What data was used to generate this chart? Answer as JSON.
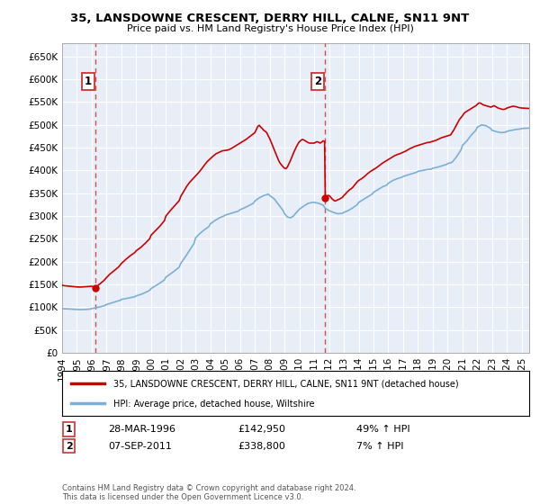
{
  "title": "35, LANSDOWNE CRESCENT, DERRY HILL, CALNE, SN11 9NT",
  "subtitle": "Price paid vs. HM Land Registry's House Price Index (HPI)",
  "xlim_start": 1994.0,
  "xlim_end": 2025.5,
  "ylim": [
    0,
    680000
  ],
  "yticks": [
    0,
    50000,
    100000,
    150000,
    200000,
    250000,
    300000,
    350000,
    400000,
    450000,
    500000,
    550000,
    600000,
    650000
  ],
  "sale1_x": 1996.24,
  "sale1_y": 142950,
  "sale2_x": 2011.75,
  "sale2_y": 338800,
  "sale1_label": "1",
  "sale2_label": "2",
  "line_color_red": "#cc0000",
  "line_color_blue": "#7ab0d4",
  "dashed_line_color": "#cc3333",
  "bg_blue": "#e8eef8",
  "bg_hatch": "#d8dce8",
  "legend_label_red": "35, LANSDOWNE CRESCENT, DERRY HILL, CALNE, SN11 9NT (detached house)",
  "legend_label_blue": "HPI: Average price, detached house, Wiltshire",
  "table_row1": [
    "1",
    "28-MAR-1996",
    "£142,950",
    "49% ↑ HPI"
  ],
  "table_row2": [
    "2",
    "07-SEP-2011",
    "£338,800",
    "7% ↑ HPI"
  ],
  "footer": "Contains HM Land Registry data © Crown copyright and database right 2024.\nThis data is licensed under the Open Government Licence v3.0.",
  "xtick_years": [
    1994,
    1995,
    1996,
    1997,
    1998,
    1999,
    2000,
    2001,
    2002,
    2003,
    2004,
    2005,
    2006,
    2007,
    2008,
    2009,
    2010,
    2011,
    2012,
    2013,
    2014,
    2015,
    2016,
    2017,
    2018,
    2019,
    2020,
    2021,
    2022,
    2023,
    2024,
    2025
  ],
  "blue_pts": [
    [
      1994.0,
      97000
    ],
    [
      1994.2,
      96500
    ],
    [
      1994.5,
      96000
    ],
    [
      1994.8,
      95500
    ],
    [
      1995.0,
      95000
    ],
    [
      1995.3,
      94800
    ],
    [
      1995.6,
      95200
    ],
    [
      1995.9,
      96000
    ],
    [
      1996.0,
      97000
    ],
    [
      1996.3,
      99000
    ],
    [
      1996.6,
      101000
    ],
    [
      1996.9,
      104000
    ],
    [
      1997.0,
      106000
    ],
    [
      1997.3,
      109000
    ],
    [
      1997.6,
      112000
    ],
    [
      1997.9,
      115000
    ],
    [
      1998.0,
      117000
    ],
    [
      1998.3,
      119000
    ],
    [
      1998.6,
      121000
    ],
    [
      1998.9,
      123000
    ],
    [
      1999.0,
      125000
    ],
    [
      1999.3,
      128000
    ],
    [
      1999.6,
      132000
    ],
    [
      1999.9,
      137000
    ],
    [
      2000.0,
      141000
    ],
    [
      2000.3,
      147000
    ],
    [
      2000.6,
      153000
    ],
    [
      2000.9,
      160000
    ],
    [
      2001.0,
      166000
    ],
    [
      2001.3,
      173000
    ],
    [
      2001.6,
      180000
    ],
    [
      2001.9,
      188000
    ],
    [
      2002.0,
      196000
    ],
    [
      2002.3,
      210000
    ],
    [
      2002.6,
      225000
    ],
    [
      2002.9,
      240000
    ],
    [
      2003.0,
      252000
    ],
    [
      2003.3,
      262000
    ],
    [
      2003.6,
      270000
    ],
    [
      2003.9,
      277000
    ],
    [
      2004.0,
      283000
    ],
    [
      2004.3,
      290000
    ],
    [
      2004.6,
      296000
    ],
    [
      2004.9,
      300000
    ],
    [
      2005.0,
      302000
    ],
    [
      2005.3,
      305000
    ],
    [
      2005.6,
      308000
    ],
    [
      2005.9,
      311000
    ],
    [
      2006.0,
      314000
    ],
    [
      2006.3,
      318000
    ],
    [
      2006.6,
      323000
    ],
    [
      2006.9,
      328000
    ],
    [
      2007.0,
      333000
    ],
    [
      2007.3,
      340000
    ],
    [
      2007.6,
      345000
    ],
    [
      2007.9,
      348000
    ],
    [
      2008.0,
      345000
    ],
    [
      2008.3,
      338000
    ],
    [
      2008.6,
      325000
    ],
    [
      2008.9,
      312000
    ],
    [
      2009.0,
      305000
    ],
    [
      2009.2,
      298000
    ],
    [
      2009.4,
      296000
    ],
    [
      2009.6,
      300000
    ],
    [
      2009.8,
      308000
    ],
    [
      2010.0,
      315000
    ],
    [
      2010.3,
      322000
    ],
    [
      2010.6,
      328000
    ],
    [
      2010.9,
      330000
    ],
    [
      2011.0,
      330000
    ],
    [
      2011.3,
      328000
    ],
    [
      2011.6,
      324000
    ],
    [
      2011.75,
      317000
    ],
    [
      2012.0,
      312000
    ],
    [
      2012.3,
      308000
    ],
    [
      2012.6,
      305000
    ],
    [
      2012.9,
      306000
    ],
    [
      2013.0,
      308000
    ],
    [
      2013.3,
      312000
    ],
    [
      2013.6,
      318000
    ],
    [
      2013.9,
      325000
    ],
    [
      2014.0,
      330000
    ],
    [
      2014.3,
      336000
    ],
    [
      2014.6,
      342000
    ],
    [
      2014.9,
      348000
    ],
    [
      2015.0,
      352000
    ],
    [
      2015.3,
      358000
    ],
    [
      2015.6,
      364000
    ],
    [
      2015.9,
      368000
    ],
    [
      2016.0,
      372000
    ],
    [
      2016.3,
      378000
    ],
    [
      2016.6,
      382000
    ],
    [
      2016.9,
      385000
    ],
    [
      2017.0,
      387000
    ],
    [
      2017.3,
      390000
    ],
    [
      2017.6,
      393000
    ],
    [
      2017.9,
      396000
    ],
    [
      2018.0,
      398000
    ],
    [
      2018.3,
      400000
    ],
    [
      2018.6,
      402000
    ],
    [
      2018.9,
      403000
    ],
    [
      2019.0,
      405000
    ],
    [
      2019.3,
      407000
    ],
    [
      2019.6,
      410000
    ],
    [
      2019.9,
      413000
    ],
    [
      2020.0,
      415000
    ],
    [
      2020.3,
      418000
    ],
    [
      2020.6,
      430000
    ],
    [
      2020.9,
      445000
    ],
    [
      2021.0,
      455000
    ],
    [
      2021.3,
      465000
    ],
    [
      2021.6,
      478000
    ],
    [
      2021.9,
      488000
    ],
    [
      2022.0,
      495000
    ],
    [
      2022.3,
      500000
    ],
    [
      2022.6,
      498000
    ],
    [
      2022.9,
      492000
    ],
    [
      2023.0,
      488000
    ],
    [
      2023.3,
      485000
    ],
    [
      2023.6,
      483000
    ],
    [
      2023.9,
      484000
    ],
    [
      2024.0,
      486000
    ],
    [
      2024.3,
      488000
    ],
    [
      2024.6,
      490000
    ],
    [
      2024.9,
      491000
    ],
    [
      2025.0,
      492000
    ],
    [
      2025.5,
      493000
    ]
  ],
  "red_pts": [
    [
      1994.0,
      148000
    ],
    [
      1994.2,
      147000
    ],
    [
      1994.5,
      146000
    ],
    [
      1994.8,
      145000
    ],
    [
      1995.0,
      144500
    ],
    [
      1995.2,
      144200
    ],
    [
      1995.4,
      144500
    ],
    [
      1995.6,
      145000
    ],
    [
      1995.8,
      145500
    ],
    [
      1996.0,
      146000
    ],
    [
      1996.24,
      142950
    ],
    [
      1996.5,
      150000
    ],
    [
      1996.8,
      158000
    ],
    [
      1997.0,
      165000
    ],
    [
      1997.2,
      172000
    ],
    [
      1997.5,
      180000
    ],
    [
      1997.8,
      188000
    ],
    [
      1998.0,
      196000
    ],
    [
      1998.3,
      205000
    ],
    [
      1998.6,
      213000
    ],
    [
      1998.9,
      220000
    ],
    [
      1999.0,
      224000
    ],
    [
      1999.3,
      231000
    ],
    [
      1999.6,
      240000
    ],
    [
      1999.9,
      250000
    ],
    [
      2000.0,
      258000
    ],
    [
      2000.3,
      268000
    ],
    [
      2000.6,
      278000
    ],
    [
      2000.9,
      290000
    ],
    [
      2001.0,
      300000
    ],
    [
      2001.3,
      312000
    ],
    [
      2001.6,
      323000
    ],
    [
      2001.9,
      334000
    ],
    [
      2002.0,
      343000
    ],
    [
      2002.2,
      354000
    ],
    [
      2002.4,
      365000
    ],
    [
      2002.6,
      374000
    ],
    [
      2002.8,
      381000
    ],
    [
      2003.0,
      388000
    ],
    [
      2003.2,
      395000
    ],
    [
      2003.4,
      403000
    ],
    [
      2003.6,
      412000
    ],
    [
      2003.8,
      420000
    ],
    [
      2004.0,
      426000
    ],
    [
      2004.2,
      432000
    ],
    [
      2004.4,
      437000
    ],
    [
      2004.6,
      440000
    ],
    [
      2004.8,
      443000
    ],
    [
      2005.0,
      444000
    ],
    [
      2005.2,
      445000
    ],
    [
      2005.4,
      448000
    ],
    [
      2005.6,
      452000
    ],
    [
      2005.8,
      456000
    ],
    [
      2006.0,
      460000
    ],
    [
      2006.2,
      464000
    ],
    [
      2006.4,
      468000
    ],
    [
      2006.6,
      473000
    ],
    [
      2006.8,
      478000
    ],
    [
      2007.0,
      483000
    ],
    [
      2007.1,
      490000
    ],
    [
      2007.2,
      497000
    ],
    [
      2007.3,
      499000
    ],
    [
      2007.4,
      495000
    ],
    [
      2007.5,
      492000
    ],
    [
      2007.6,
      488000
    ],
    [
      2007.7,
      486000
    ],
    [
      2007.8,
      483000
    ],
    [
      2007.9,
      476000
    ],
    [
      2008.0,
      470000
    ],
    [
      2008.1,
      462000
    ],
    [
      2008.2,
      454000
    ],
    [
      2008.3,
      446000
    ],
    [
      2008.4,
      438000
    ],
    [
      2008.5,
      430000
    ],
    [
      2008.6,
      422000
    ],
    [
      2008.7,
      416000
    ],
    [
      2008.8,
      412000
    ],
    [
      2008.9,
      408000
    ],
    [
      2009.0,
      405000
    ],
    [
      2009.1,
      404000
    ],
    [
      2009.2,
      408000
    ],
    [
      2009.3,
      415000
    ],
    [
      2009.4,
      422000
    ],
    [
      2009.5,
      430000
    ],
    [
      2009.6,
      438000
    ],
    [
      2009.7,
      445000
    ],
    [
      2009.8,
      452000
    ],
    [
      2009.9,
      458000
    ],
    [
      2010.0,
      463000
    ],
    [
      2010.1,
      466000
    ],
    [
      2010.2,
      468000
    ],
    [
      2010.3,
      467000
    ],
    [
      2010.4,
      465000
    ],
    [
      2010.5,
      463000
    ],
    [
      2010.6,
      461000
    ],
    [
      2010.7,
      460000
    ],
    [
      2010.8,
      460000
    ],
    [
      2010.9,
      460000
    ],
    [
      2011.0,
      460000
    ],
    [
      2011.1,
      462000
    ],
    [
      2011.2,
      463000
    ],
    [
      2011.3,
      462000
    ],
    [
      2011.4,
      460000
    ],
    [
      2011.5,
      462000
    ],
    [
      2011.6,
      465000
    ],
    [
      2011.7,
      464000
    ],
    [
      2011.75,
      338800
    ],
    [
      2011.8,
      342000
    ],
    [
      2011.9,
      345000
    ],
    [
      2012.0,
      345000
    ],
    [
      2012.1,
      342000
    ],
    [
      2012.2,
      338000
    ],
    [
      2012.3,
      335000
    ],
    [
      2012.4,
      333000
    ],
    [
      2012.5,
      334000
    ],
    [
      2012.6,
      336000
    ],
    [
      2012.7,
      337000
    ],
    [
      2012.8,
      339000
    ],
    [
      2012.9,
      341000
    ],
    [
      2013.0,
      345000
    ],
    [
      2013.1,
      348000
    ],
    [
      2013.2,
      352000
    ],
    [
      2013.3,
      355000
    ],
    [
      2013.4,
      358000
    ],
    [
      2013.5,
      360000
    ],
    [
      2013.6,
      363000
    ],
    [
      2013.7,
      367000
    ],
    [
      2013.8,
      371000
    ],
    [
      2013.9,
      375000
    ],
    [
      2014.0,
      378000
    ],
    [
      2014.2,
      382000
    ],
    [
      2014.4,
      387000
    ],
    [
      2014.6,
      393000
    ],
    [
      2014.8,
      398000
    ],
    [
      2015.0,
      402000
    ],
    [
      2015.2,
      406000
    ],
    [
      2015.4,
      411000
    ],
    [
      2015.6,
      416000
    ],
    [
      2015.8,
      420000
    ],
    [
      2016.0,
      424000
    ],
    [
      2016.2,
      428000
    ],
    [
      2016.4,
      432000
    ],
    [
      2016.6,
      435000
    ],
    [
      2016.8,
      437000
    ],
    [
      2017.0,
      440000
    ],
    [
      2017.2,
      443000
    ],
    [
      2017.4,
      447000
    ],
    [
      2017.6,
      450000
    ],
    [
      2017.8,
      453000
    ],
    [
      2018.0,
      455000
    ],
    [
      2018.2,
      457000
    ],
    [
      2018.4,
      459000
    ],
    [
      2018.6,
      461000
    ],
    [
      2018.8,
      462000
    ],
    [
      2019.0,
      464000
    ],
    [
      2019.2,
      466000
    ],
    [
      2019.4,
      469000
    ],
    [
      2019.6,
      472000
    ],
    [
      2019.8,
      474000
    ],
    [
      2020.0,
      476000
    ],
    [
      2020.2,
      478000
    ],
    [
      2020.4,
      488000
    ],
    [
      2020.6,
      500000
    ],
    [
      2020.8,
      512000
    ],
    [
      2021.0,
      520000
    ],
    [
      2021.1,
      525000
    ],
    [
      2021.2,
      528000
    ],
    [
      2021.3,
      530000
    ],
    [
      2021.4,
      532000
    ],
    [
      2021.5,
      534000
    ],
    [
      2021.6,
      536000
    ],
    [
      2021.7,
      538000
    ],
    [
      2021.8,
      540000
    ],
    [
      2021.9,
      542000
    ],
    [
      2022.0,
      545000
    ],
    [
      2022.1,
      548000
    ],
    [
      2022.2,
      548000
    ],
    [
      2022.3,
      546000
    ],
    [
      2022.4,
      544000
    ],
    [
      2022.5,
      543000
    ],
    [
      2022.6,
      542000
    ],
    [
      2022.7,
      541000
    ],
    [
      2022.8,
      540000
    ],
    [
      2022.9,
      539000
    ],
    [
      2023.0,
      540000
    ],
    [
      2023.1,
      542000
    ],
    [
      2023.2,
      541000
    ],
    [
      2023.3,
      539000
    ],
    [
      2023.4,
      537000
    ],
    [
      2023.5,
      536000
    ],
    [
      2023.6,
      535000
    ],
    [
      2023.7,
      534000
    ],
    [
      2023.8,
      534000
    ],
    [
      2023.9,
      535000
    ],
    [
      2024.0,
      537000
    ],
    [
      2024.2,
      539000
    ],
    [
      2024.4,
      541000
    ],
    [
      2024.6,
      540000
    ],
    [
      2024.8,
      538000
    ],
    [
      2025.0,
      537000
    ],
    [
      2025.5,
      536000
    ]
  ]
}
